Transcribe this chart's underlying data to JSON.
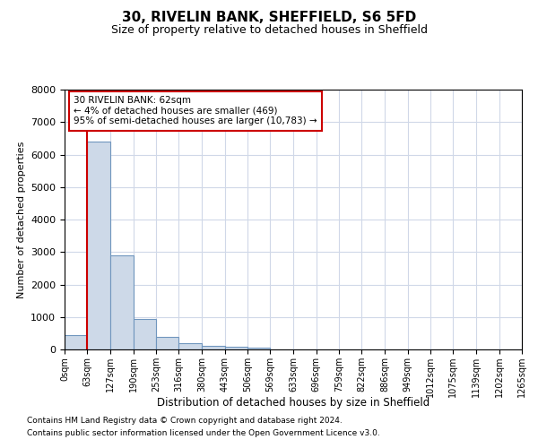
{
  "title1": "30, RIVELIN BANK, SHEFFIELD, S6 5FD",
  "title2": "Size of property relative to detached houses in Sheffield",
  "xlabel": "Distribution of detached houses by size in Sheffield",
  "ylabel": "Number of detached properties",
  "bar_values": [
    450,
    6400,
    2900,
    950,
    400,
    180,
    120,
    70,
    50,
    0,
    0,
    0,
    0,
    0,
    0,
    0,
    0,
    0,
    0,
    0
  ],
  "bin_edges": [
    0,
    63,
    127,
    190,
    253,
    316,
    380,
    443,
    506,
    569,
    633,
    696,
    759,
    822,
    886,
    949,
    1012,
    1075,
    1139,
    1202,
    1265
  ],
  "xtick_labels": [
    "0sqm",
    "63sqm",
    "127sqm",
    "190sqm",
    "253sqm",
    "316sqm",
    "380sqm",
    "443sqm",
    "506sqm",
    "569sqm",
    "633sqm",
    "696sqm",
    "759sqm",
    "822sqm",
    "886sqm",
    "949sqm",
    "1012sqm",
    "1075sqm",
    "1139sqm",
    "1202sqm",
    "1265sqm"
  ],
  "bar_facecolor": "#cdd9e8",
  "bar_edgecolor": "#7096be",
  "grid_color": "#d0d8e8",
  "property_line_x": 62,
  "property_line_color": "#cc0000",
  "ylim": [
    0,
    8000
  ],
  "yticks": [
    0,
    1000,
    2000,
    3000,
    4000,
    5000,
    6000,
    7000,
    8000
  ],
  "annotation_text": "30 RIVELIN BANK: 62sqm\n← 4% of detached houses are smaller (469)\n95% of semi-detached houses are larger (10,783) →",
  "annotation_box_color": "#cc0000",
  "footer1": "Contains HM Land Registry data © Crown copyright and database right 2024.",
  "footer2": "Contains public sector information licensed under the Open Government Licence v3.0.",
  "background_color": "#ffffff",
  "fig_width": 6.0,
  "fig_height": 5.0
}
